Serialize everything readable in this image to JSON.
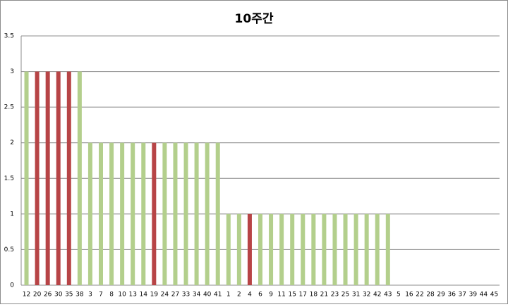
{
  "chart_data": {
    "type": "bar",
    "title": "10주간",
    "categories": [
      "12",
      "20",
      "26",
      "30",
      "35",
      "38",
      "3",
      "7",
      "8",
      "10",
      "13",
      "14",
      "19",
      "24",
      "27",
      "33",
      "34",
      "40",
      "41",
      "1",
      "2",
      "4",
      "6",
      "9",
      "11",
      "15",
      "17",
      "18",
      "21",
      "23",
      "25",
      "31",
      "32",
      "42",
      "43",
      "5",
      "16",
      "22",
      "28",
      "29",
      "36",
      "37",
      "39",
      "44",
      "45"
    ],
    "values": [
      3,
      3,
      3,
      3,
      3,
      3,
      2,
      2,
      2,
      2,
      2,
      2,
      2,
      2,
      2,
      2,
      2,
      2,
      2,
      1,
      1,
      1,
      1,
      1,
      1,
      1,
      1,
      1,
      1,
      1,
      1,
      1,
      1,
      1,
      1,
      0,
      0,
      0,
      0,
      0,
      0,
      0,
      0,
      0,
      0
    ],
    "colors": [
      "#b3cf8c",
      "#b74446",
      "#b74446",
      "#b74446",
      "#b74446",
      "#b3cf8c",
      "#b3cf8c",
      "#b3cf8c",
      "#b3cf8c",
      "#b3cf8c",
      "#b3cf8c",
      "#b3cf8c",
      "#b74446",
      "#b3cf8c",
      "#b3cf8c",
      "#b3cf8c",
      "#b3cf8c",
      "#b3cf8c",
      "#b3cf8c",
      "#b3cf8c",
      "#b3cf8c",
      "#b74446",
      "#b3cf8c",
      "#b3cf8c",
      "#b3cf8c",
      "#b3cf8c",
      "#b3cf8c",
      "#b3cf8c",
      "#b3cf8c",
      "#b3cf8c",
      "#b3cf8c",
      "#b3cf8c",
      "#b3cf8c",
      "#b3cf8c",
      "#b3cf8c",
      "#b3cf8c",
      "#b3cf8c",
      "#b3cf8c",
      "#b3cf8c",
      "#b3cf8c",
      "#b3cf8c",
      "#b3cf8c",
      "#b3cf8c",
      "#b3cf8c",
      "#b3cf8c"
    ],
    "ylim": [
      0,
      3.5
    ],
    "yticks": [
      0,
      0.5,
      1,
      1.5,
      2,
      2.5,
      3,
      3.5
    ],
    "grid": true
  }
}
